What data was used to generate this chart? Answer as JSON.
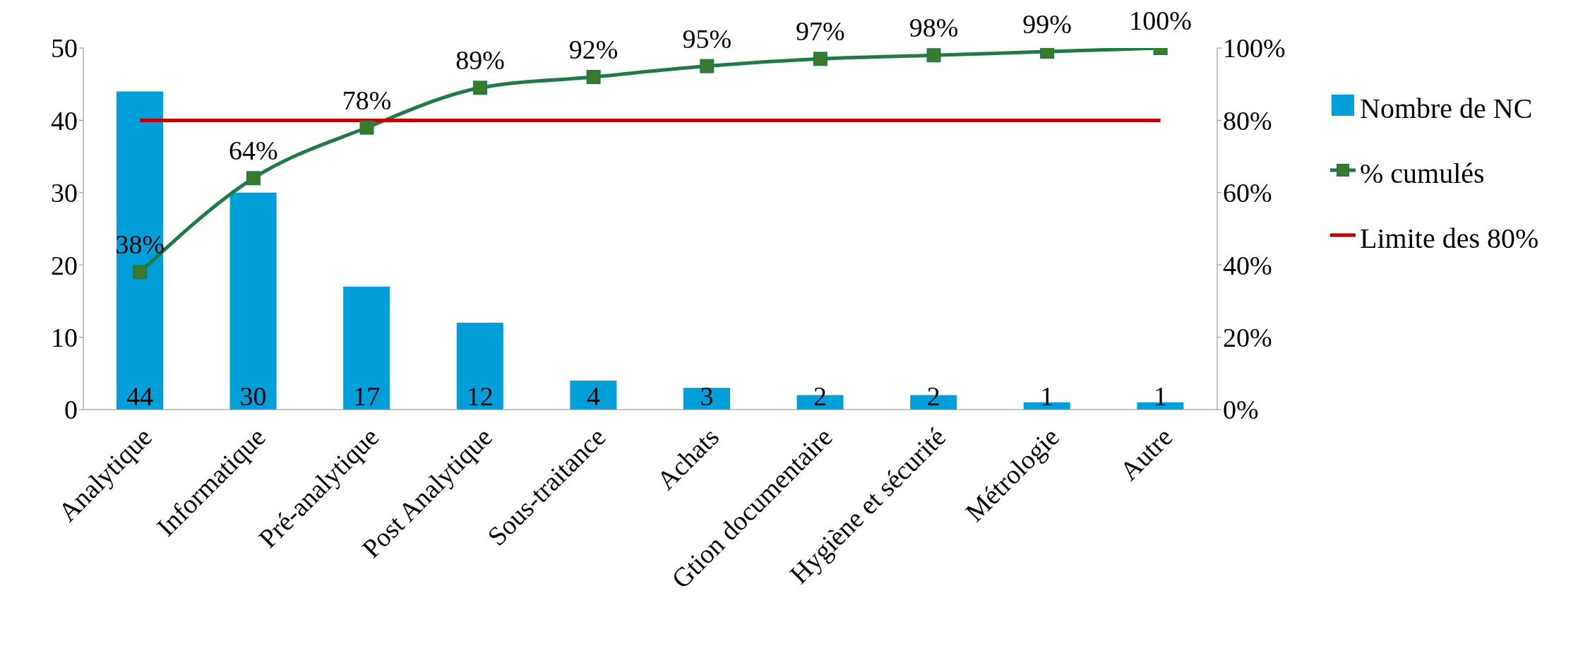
{
  "chart_data": {
    "type": "bar",
    "categories": [
      "Analytique",
      "Informatique",
      "Pré-analytique",
      "Post Analytique",
      "Sous-traitance",
      "Achats",
      "Gtion documentaire",
      "Hygiène et sécurité",
      "Métrologie",
      "Autre"
    ],
    "series": [
      {
        "name": "Nombre de NC",
        "color": "#009fda",
        "values": [
          44,
          30,
          17,
          12,
          4,
          3,
          2,
          2,
          1,
          1
        ],
        "value_labels": [
          "44",
          "30",
          "17",
          "12",
          "4",
          "3",
          "2",
          "2",
          "1",
          "1"
        ]
      },
      {
        "name": "% cumulés",
        "type": "line",
        "axis": "y2",
        "color": "#1f7a4a",
        "marker": "square",
        "values": [
          38,
          64,
          78,
          89,
          92,
          95,
          97,
          98,
          99,
          100
        ],
        "value_labels": [
          "38%",
          "64%",
          "78%",
          "89%",
          "92%",
          "95%",
          "97%",
          "98%",
          "99%",
          "100%"
        ]
      },
      {
        "name": "Limite des 80%",
        "type": "line",
        "axis": "y2",
        "color": "#c00000",
        "marker": "none",
        "values": [
          80,
          80,
          80,
          80,
          80,
          80,
          80,
          80,
          80,
          80
        ]
      }
    ],
    "ylim": [
      0,
      50
    ],
    "yticks": [
      0,
      10,
      20,
      30,
      40,
      50
    ],
    "y2lim": [
      0,
      100
    ],
    "y2ticks": [
      {
        "value": 0,
        "label": "0%"
      },
      {
        "value": 20,
        "label": "20%"
      },
      {
        "value": 40,
        "label": "40%"
      },
      {
        "value": 60,
        "label": "60%"
      },
      {
        "value": 80,
        "label": "80%"
      },
      {
        "value": 100,
        "label": "100%"
      }
    ],
    "grid": false,
    "legend": "right"
  }
}
